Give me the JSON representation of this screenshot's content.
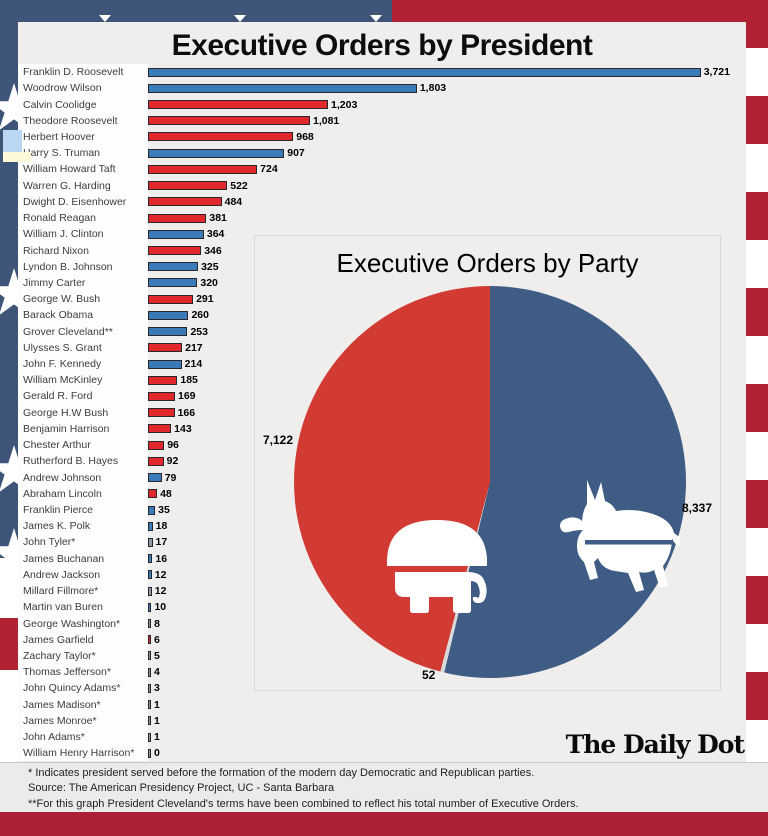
{
  "page": {
    "title": "Executive Orders by President",
    "logo": "The Daily Dot"
  },
  "chart_data": [
    {
      "type": "bar",
      "title": "Executive Orders by President",
      "orientation": "horizontal",
      "colors": {
        "D": "#3b7ab8",
        "R": "#e0282d",
        "N": "#8e9aa8"
      },
      "bars": [
        {
          "name": "Franklin D. Roosevelt",
          "value": 3721,
          "label": "3,721",
          "party": "D"
        },
        {
          "name": "Woodrow Wilson",
          "value": 1803,
          "label": "1,803",
          "party": "D"
        },
        {
          "name": "Calvin Coolidge",
          "value": 1203,
          "label": "1,203",
          "party": "R"
        },
        {
          "name": "Theodore Roosevelt",
          "value": 1081,
          "label": "1,081",
          "party": "R"
        },
        {
          "name": "Herbert Hoover",
          "value": 968,
          "label": "968",
          "party": "R"
        },
        {
          "name": "Harry S. Truman",
          "value": 907,
          "label": "907",
          "party": "D"
        },
        {
          "name": "William Howard Taft",
          "value": 724,
          "label": "724",
          "party": "R"
        },
        {
          "name": "Warren G. Harding",
          "value": 522,
          "label": "522",
          "party": "R"
        },
        {
          "name": "Dwight D. Eisenhower",
          "value": 484,
          "label": "484",
          "party": "R"
        },
        {
          "name": "Ronald Reagan",
          "value": 381,
          "label": "381",
          "party": "R"
        },
        {
          "name": "William J. Clinton",
          "value": 364,
          "label": "364",
          "party": "D"
        },
        {
          "name": "Richard Nixon",
          "value": 346,
          "label": "346",
          "party": "R"
        },
        {
          "name": "Lyndon B. Johnson",
          "value": 325,
          "label": "325",
          "party": "D"
        },
        {
          "name": "Jimmy Carter",
          "value": 320,
          "label": "320",
          "party": "D"
        },
        {
          "name": "George W. Bush",
          "value": 291,
          "label": "291",
          "party": "R"
        },
        {
          "name": "Barack Obama",
          "value": 260,
          "label": "260",
          "party": "D"
        },
        {
          "name": "Grover Cleveland**",
          "value": 253,
          "label": "253",
          "party": "D"
        },
        {
          "name": "Ulysses S. Grant",
          "value": 217,
          "label": "217",
          "party": "R"
        },
        {
          "name": "John F. Kennedy",
          "value": 214,
          "label": "214",
          "party": "D"
        },
        {
          "name": "William McKinley",
          "value": 185,
          "label": "185",
          "party": "R"
        },
        {
          "name": "Gerald R. Ford",
          "value": 169,
          "label": "169",
          "party": "R"
        },
        {
          "name": "George H.W Bush",
          "value": 166,
          "label": "166",
          "party": "R"
        },
        {
          "name": "Benjamin Harrison",
          "value": 143,
          "label": "143",
          "party": "R"
        },
        {
          "name": "Chester Arthur",
          "value": 96,
          "label": "96",
          "party": "R"
        },
        {
          "name": "Rutherford B. Hayes",
          "value": 92,
          "label": "92",
          "party": "R"
        },
        {
          "name": "Andrew Johnson",
          "value": 79,
          "label": "79",
          "party": "D"
        },
        {
          "name": "Abraham Lincoln",
          "value": 48,
          "label": "48",
          "party": "R"
        },
        {
          "name": "Franklin Pierce",
          "value": 35,
          "label": "35",
          "party": "D"
        },
        {
          "name": "James K. Polk",
          "value": 18,
          "label": "18",
          "party": "D"
        },
        {
          "name": "John Tyler*",
          "value": 17,
          "label": "17",
          "party": "N"
        },
        {
          "name": "James Buchanan",
          "value": 16,
          "label": "16",
          "party": "D"
        },
        {
          "name": "Andrew Jackson",
          "value": 12,
          "label": "12",
          "party": "D"
        },
        {
          "name": "Millard Fillmore*",
          "value": 12,
          "label": "12",
          "party": "N"
        },
        {
          "name": "Martin van Buren",
          "value": 10,
          "label": "10",
          "party": "D"
        },
        {
          "name": "George Washington*",
          "value": 8,
          "label": "8",
          "party": "N"
        },
        {
          "name": "James Garfield",
          "value": 6,
          "label": "6",
          "party": "R"
        },
        {
          "name": "Zachary Taylor*",
          "value": 5,
          "label": "5",
          "party": "N"
        },
        {
          "name": "Thomas Jefferson*",
          "value": 4,
          "label": "4",
          "party": "N"
        },
        {
          "name": "John Quincy Adams*",
          "value": 3,
          "label": "3",
          "party": "N"
        },
        {
          "name": "James Madison*",
          "value": 1,
          "label": "1",
          "party": "N"
        },
        {
          "name": "James Monroe*",
          "value": 1,
          "label": "1",
          "party": "N"
        },
        {
          "name": "John Adams*",
          "value": 1,
          "label": "1",
          "party": "N"
        },
        {
          "name": "William Henry Harrison*",
          "value": 0,
          "label": "0",
          "party": "N"
        }
      ]
    },
    {
      "type": "pie",
      "title": "Executive Orders by Party",
      "start": "top",
      "direction": "clockwise",
      "slices": [
        {
          "party": "Democratic",
          "value": 8337,
          "label": "8,337",
          "color": "#3e5c84",
          "icon": "donkey-icon"
        },
        {
          "party": "Other",
          "value": 52,
          "label": "52",
          "color": "#d9d9d9",
          "icon": ""
        },
        {
          "party": "Republican",
          "value": 7122,
          "label": "7,122",
          "color": "#d23b34",
          "icon": "elephant-icon"
        }
      ]
    }
  ],
  "footnotes": [
    "* Indicates president served before the formation of the modern day Democratic and Republican parties.",
    "Source: The American Presidency Project, UC - Santa Barbara",
    "**For this graph President Cleveland's terms have been combined to reflect his total number of Executive Orders."
  ],
  "colors": {
    "flag_blue": "#3e5478",
    "flag_red": "#b22234",
    "panel": "#efeeec",
    "bar_blue": "#3b7ab8",
    "bar_red": "#e0282d",
    "neutral_bar": "#8e9aa8",
    "pie_blue": "#3e5c84",
    "pie_red": "#d23b34",
    "pie_other": "#d9d9d9"
  }
}
